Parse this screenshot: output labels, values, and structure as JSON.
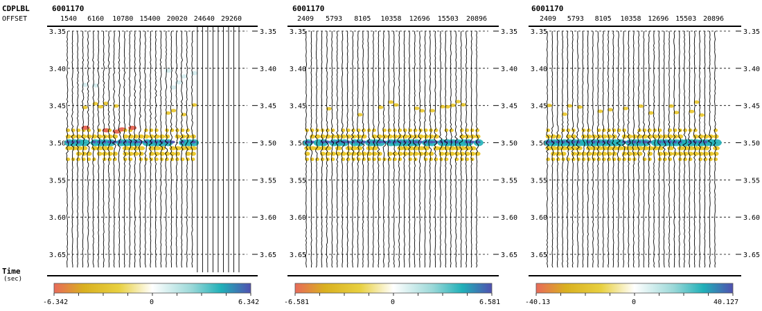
{
  "figure": {
    "header_key_label": "CDPLBL",
    "offset_key_label": "OFFSET",
    "time_axis_label": "Time",
    "time_axis_unit": "(sec)"
  },
  "colors": {
    "negative_dark": "#e86a5a",
    "negative_mid": "#e8c21a",
    "neutral": "#ffffff",
    "positive_mid": "#20b0b8",
    "positive_dark": "#5050b0",
    "wiggle": "#000000",
    "grid": "#000000"
  },
  "chart_data": [
    {
      "type": "seismic-gather",
      "cdp_label": "6001170",
      "offset_tick_labels": [
        "1540",
        "6160",
        "10780",
        "15400",
        "20020",
        "24640",
        "29260"
      ],
      "trace_count": 34,
      "traces_with_data": 25,
      "time_ticks": [
        3.35,
        3.4,
        3.45,
        3.5,
        3.55,
        3.6,
        3.65
      ],
      "time_tick_labels": [
        "3.35",
        "3.40",
        "3.45",
        "3.50",
        "3.55",
        "3.60",
        "3.65"
      ],
      "time_range": [
        3.345,
        3.675
      ],
      "event_time": 3.5,
      "colorbar": {
        "min": -6.342,
        "max": 6.342,
        "min_label": "-6.342",
        "mid_label": "0",
        "max_label": "6.342"
      }
    },
    {
      "type": "seismic-gather",
      "cdp_label": "6001170",
      "offset_tick_labels": [
        "2409",
        "5793",
        "8105",
        "10358",
        "12696",
        "15503",
        "20896"
      ],
      "trace_count": 34,
      "traces_with_data": 34,
      "time_ticks": [
        3.35,
        3.4,
        3.45,
        3.5,
        3.55,
        3.6,
        3.65
      ],
      "time_tick_labels": [
        "3.35",
        "3.40",
        "3.45",
        "3.50",
        "3.55",
        "3.60",
        "3.65"
      ],
      "time_range": [
        3.345,
        3.675
      ],
      "event_time": 3.5,
      "colorbar": {
        "min": -6.581,
        "max": 6.581,
        "min_label": "-6.581",
        "mid_label": "0",
        "max_label": "6.581"
      }
    },
    {
      "type": "seismic-gather",
      "cdp_label": "6001170",
      "offset_tick_labels": [
        "2409",
        "5793",
        "8105",
        "10358",
        "12696",
        "15503",
        "20896"
      ],
      "trace_count": 34,
      "traces_with_data": 34,
      "time_ticks": [
        3.35,
        3.4,
        3.45,
        3.5,
        3.55,
        3.6,
        3.65
      ],
      "time_tick_labels": [
        "3.35",
        "3.40",
        "3.45",
        "3.50",
        "3.55",
        "3.60",
        "3.65"
      ],
      "time_range": [
        3.345,
        3.675
      ],
      "event_time": 3.5,
      "colorbar": {
        "min": -40.13,
        "max": 40.127,
        "min_label": "-40.13",
        "mid_label": "0",
        "max_label": "40.127"
      }
    }
  ]
}
